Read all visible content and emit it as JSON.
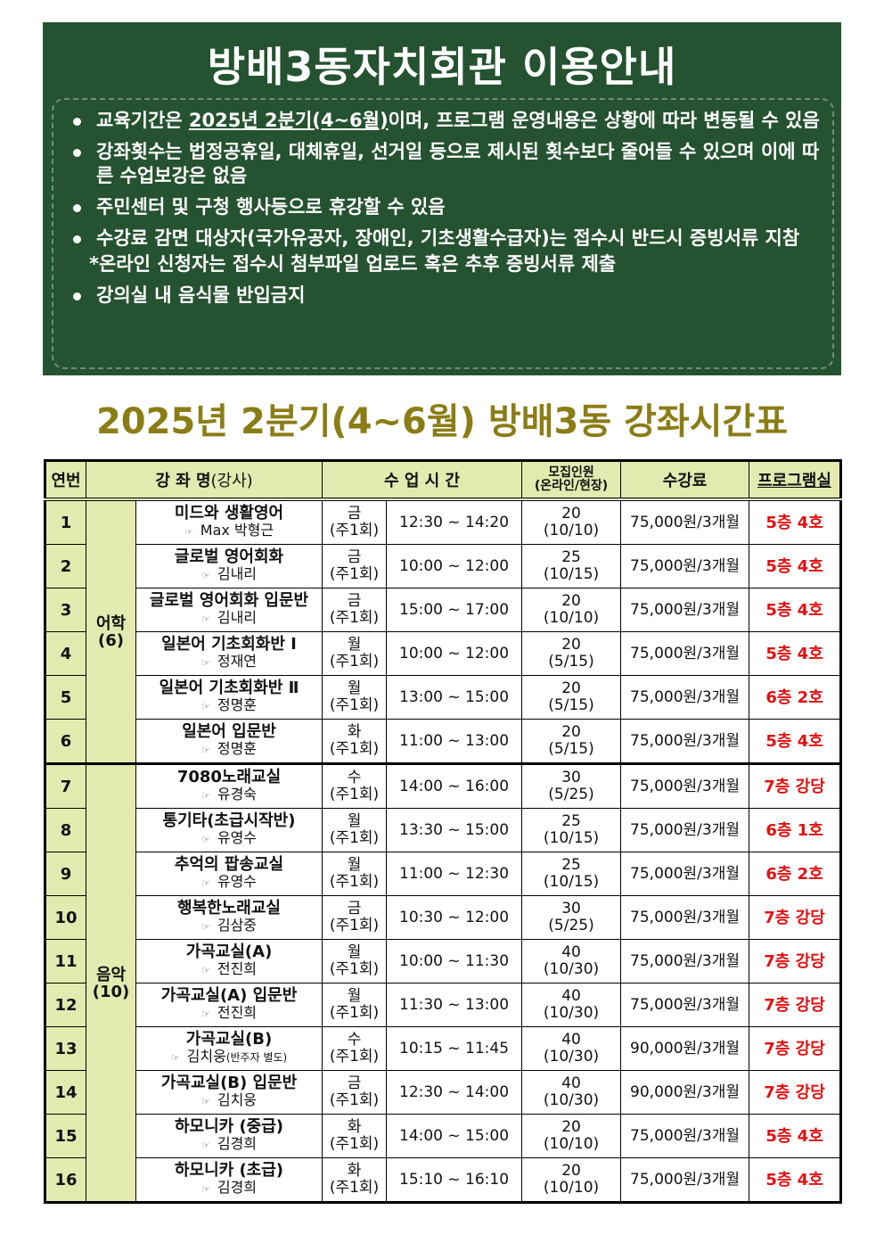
{
  "banner": {
    "title": "방배3동자치회관 이용안내",
    "notices": [
      {
        "pre": "교육기간은 ",
        "underline": "2025년 2분기(4~6월)",
        "post": "이며, 프로그램 운영내용은 상황에 따라 변동될 수 있음"
      },
      {
        "pre": "강좌횟수는 법정공휴일, 대체휴일, 선거일 등으로 제시된 횟수보다 줄어들 수 있으며 이에 따른 수업보강은 없음"
      },
      {
        "pre": "주민센터 및 구청 행사등으로 휴강할 수 있음"
      },
      {
        "pre": "수강료 감면 대상자(국가유공자, 장애인, 기초생활수급자)는 접수시 반드시 증빙서류 지참"
      },
      {
        "sub": "*온라인 신청자는 접수시 첨부파일 업로드 혹은 추후 증빙서류 제출"
      },
      {
        "pre": "강의실 내 음식물 반입금지"
      }
    ]
  },
  "schedule_title": "2025년  2분기(4~6월)  방배3동  강좌시간표",
  "table": {
    "headers": {
      "no": "연번",
      "course": "강 좌 명",
      "course_sub": "(강사)",
      "time": "수  업  시  간",
      "capacity_1": "모집인원",
      "capacity_2": "(온라인/현장)",
      "fee": "수강료",
      "room": "프로그램실"
    },
    "groups": [
      {
        "name": "어학",
        "count": "(6)",
        "rows": [
          {
            "no": "1",
            "course": "미드와  생활영어",
            "teacher": "Max 박형근",
            "day": "금",
            "freq": "(주1회)",
            "time": "12:30  ~  14:20",
            "cap": "20",
            "split": "(10/10)",
            "fee": "75,000원/3개월",
            "room": "5층  4호"
          },
          {
            "no": "2",
            "course": "글로벌  영어회화",
            "teacher": "김내리",
            "day": "금",
            "freq": "(주1회)",
            "time": "10:00  ~  12:00",
            "cap": "25",
            "split": "(10/15)",
            "fee": "75,000원/3개월",
            "room": "5층  4호"
          },
          {
            "no": "3",
            "course": "글로벌 영어회화 입문반",
            "teacher": "김내리",
            "day": "금",
            "freq": "(주1회)",
            "time": "15:00  ~  17:00",
            "cap": "20",
            "split": "(10/10)",
            "fee": "75,000원/3개월",
            "room": "5층  4호"
          },
          {
            "no": "4",
            "course": "일본어  기초회화반 Ⅰ",
            "teacher": "정재연",
            "day": "월",
            "freq": "(주1회)",
            "time": "10:00  ~  12:00",
            "cap": "20",
            "split": "(5/15)",
            "fee": "75,000원/3개월",
            "room": "5층  4호"
          },
          {
            "no": "5",
            "course": "일본어  기초회화반 Ⅱ",
            "teacher": "정명훈",
            "day": "월",
            "freq": "(주1회)",
            "time": "13:00  ~  15:00",
            "cap": "20",
            "split": "(5/15)",
            "fee": "75,000원/3개월",
            "room": "6층  2호"
          },
          {
            "no": "6",
            "course": "일본어  입문반",
            "teacher": "정명훈",
            "day": "화",
            "freq": "(주1회)",
            "time": "11:00  ~  13:00",
            "cap": "20",
            "split": "(5/15)",
            "fee": "75,000원/3개월",
            "room": "5층  4호"
          }
        ]
      },
      {
        "name": "음악",
        "count": "(10)",
        "rows": [
          {
            "no": "7",
            "course": "7080노래교실",
            "teacher": "유경숙",
            "day": "수",
            "freq": "(주1회)",
            "time": "14:00  ~  16:00",
            "cap": "30",
            "split": "(5/25)",
            "fee": "75,000원/3개월",
            "room": "7층  강당"
          },
          {
            "no": "8",
            "course": "통기타(초급시작반)",
            "teacher": "유영수",
            "day": "월",
            "freq": "(주1회)",
            "time": "13:30  ~  15:00",
            "cap": "25",
            "split": "(10/15)",
            "fee": "75,000원/3개월",
            "room": "6층  1호"
          },
          {
            "no": "9",
            "course": "추억의  팝송교실",
            "teacher": "유영수",
            "day": "월",
            "freq": "(주1회)",
            "time": "11:00  ~  12:30",
            "cap": "25",
            "split": "(10/15)",
            "fee": "75,000원/3개월",
            "room": "6층  2호"
          },
          {
            "no": "10",
            "course": "행복한노래교실",
            "teacher": "김삼중",
            "day": "금",
            "freq": "(주1회)",
            "time": "10:30  ~  12:00",
            "cap": "30",
            "split": "(5/25)",
            "fee": "75,000원/3개월",
            "room": "7층  강당"
          },
          {
            "no": "11",
            "course": "가곡교실(A)",
            "teacher": "전진희",
            "day": "월",
            "freq": "(주1회)",
            "time": "10:00  ~  11:30",
            "cap": "40",
            "split": "(10/30)",
            "fee": "75,000원/3개월",
            "room": "7층  강당"
          },
          {
            "no": "12",
            "course": "가곡교실(A)  입문반",
            "teacher": "전진희",
            "day": "월",
            "freq": "(주1회)",
            "time": "11:30  ~  13:00",
            "cap": "40",
            "split": "(10/30)",
            "fee": "75,000원/3개월",
            "room": "7층  강당"
          },
          {
            "no": "13",
            "course": "가곡교실(B)",
            "teacher": "김치웅",
            "note": "(반주자 별도)",
            "day": "수",
            "freq": "(주1회)",
            "time": "10:15  ~  11:45",
            "cap": "40",
            "split": "(10/30)",
            "fee": "90,000원/3개월",
            "room": "7층  강당"
          },
          {
            "no": "14",
            "course": "가곡교실(B)  입문반",
            "teacher": "김치웅",
            "day": "금",
            "freq": "(주1회)",
            "time": "12:30  ~  14:00",
            "cap": "40",
            "split": "(10/30)",
            "fee": "90,000원/3개월",
            "room": "7층  강당"
          },
          {
            "no": "15",
            "course": "하모니카 (중급)",
            "teacher": "김경희",
            "day": "화",
            "freq": "(주1회)",
            "time": "14:00  ~  15:00",
            "cap": "20",
            "split": "(10/10)",
            "fee": "75,000원/3개월",
            "room": "5층  4호"
          },
          {
            "no": "16",
            "course": "하모니카 (초급)",
            "teacher": "김경희",
            "day": "화",
            "freq": "(주1회)",
            "time": "15:10  ~  16:10",
            "cap": "20",
            "split": "(10/10)",
            "fee": "75,000원/3개월",
            "room": "5층  4호"
          }
        ]
      }
    ]
  },
  "icons": {
    "teacher_marker": "pointing-hand-icon"
  },
  "colors": {
    "banner_bg": "#255230",
    "title": "#8b7d16",
    "header_bg": "#e3eab0",
    "room_text": "#e01010"
  }
}
